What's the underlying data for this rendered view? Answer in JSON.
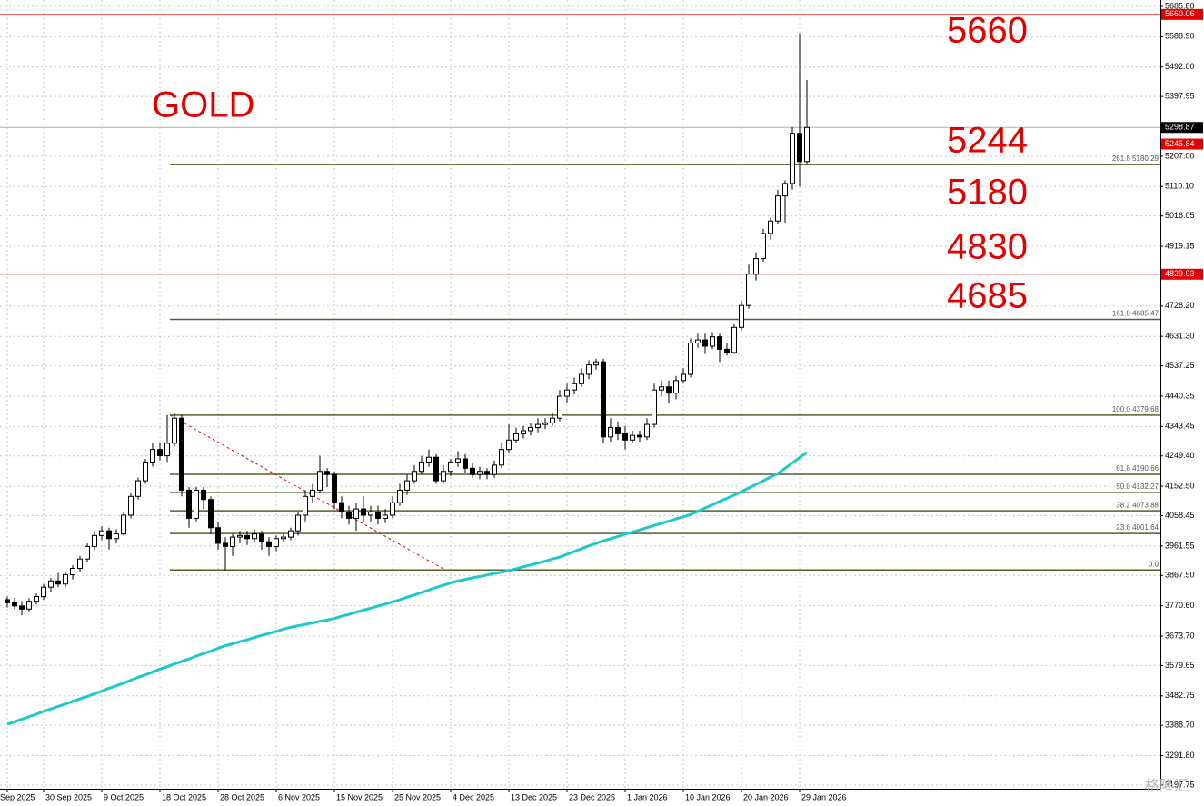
{
  "chart_data": {
    "type": "candlestick",
    "symbol_label": "GOLD",
    "annotations": [
      "5660",
      "5244",
      "5180",
      "4830",
      "4685"
    ],
    "ylim": [
      3186.0,
      5706.1
    ],
    "yticks": [
      {
        "value": 5685.8,
        "label": "5685.80"
      },
      {
        "value": 5588.9,
        "label": "5588.90"
      },
      {
        "value": 5492.0,
        "label": "5492.00"
      },
      5397.95,
      {
        "value": 5207.0,
        "label": "5207.00"
      },
      {
        "value": 5110.1,
        "label": "5110.10"
      },
      5016.05,
      4919.15,
      {
        "value": 4728.2,
        "label": "4728.20"
      },
      {
        "value": 4631.3,
        "label": "4631.30"
      },
      4537.25,
      4440.35,
      4343.45,
      {
        "value": 4249.4,
        "label": "4249.40"
      },
      {
        "value": 4152.5,
        "label": "4152.50"
      },
      4058.45,
      3961.55,
      {
        "value": 3867.5,
        "label": "3867.50"
      },
      {
        "value": 3770.6,
        "label": "3770.60"
      },
      {
        "value": 3673.7,
        "label": "3673.70"
      },
      3579.65,
      3482.75,
      {
        "value": 3388.7,
        "label": "3388.70"
      },
      {
        "value": 3291.8,
        "label": "3291.80"
      },
      3197.75
    ],
    "grid": true,
    "up_color": "#ffffff",
    "down_color": "#000000",
    "levels": [
      5660.06,
      5245.84,
      4829.93
    ],
    "level_color": "#e00000",
    "fib_color": "#4f6228",
    "fib_levels": [
      {
        "value": 5180.29,
        "label": "261.8 5180.29"
      },
      {
        "value": 4685.47,
        "label": "161.8 4685.47"
      },
      {
        "value": 4379.68,
        "label": "100.0 4379.68"
      },
      {
        "value": 4190.66,
        "label": "61.8 4190.66"
      },
      {
        "value": 4132.27,
        "label": "50.0 4132.27"
      },
      {
        "value": 4073.88,
        "label": "38.2 4073.88"
      },
      {
        "value": 4001.64,
        "label": "23.6 4001.64"
      },
      {
        "value": 3884.9,
        "label": "0.0"
      }
    ],
    "categories": [
      "Sep 2025",
      null,
      null,
      null,
      null,
      "30 Sep 2025",
      null,
      null,
      null,
      null,
      null,
      null,
      null,
      "9 Oct 2025",
      null,
      null,
      null,
      null,
      null,
      null,
      null,
      "18 Oct 2025",
      null,
      null,
      null,
      null,
      null,
      null,
      null,
      "28 Oct 2025",
      null,
      null,
      null,
      null,
      null,
      null,
      null,
      "6 Nov 2025",
      null,
      null,
      null,
      null,
      null,
      null,
      null,
      "15 Nov 2025",
      null,
      null,
      null,
      null,
      null,
      null,
      null,
      "25 Nov 2025",
      null,
      null,
      null,
      null,
      null,
      null,
      null,
      "4 Dec 2025",
      null,
      null,
      null,
      null,
      null,
      null,
      null,
      "13 Dec 2025",
      null,
      null,
      null,
      null,
      null,
      null,
      null,
      "23 Dec 2025",
      null,
      null,
      null,
      null,
      null,
      null,
      null,
      "1 Jan 2026",
      null,
      null,
      null,
      null,
      null,
      null,
      null,
      "10 Jan 2026",
      null,
      null,
      null,
      null,
      null,
      null,
      null,
      "20 Jan 2026",
      null,
      null,
      null,
      null,
      null,
      null,
      null,
      "29 Jan 2026",
      null
    ],
    "candles": [
      [
        3790,
        3800,
        3765,
        3780
      ],
      [
        3780,
        3795,
        3760,
        3770
      ],
      [
        3770,
        3785,
        3740,
        3760
      ],
      [
        3760,
        3795,
        3750,
        3785
      ],
      [
        3785,
        3810,
        3775,
        3800
      ],
      [
        3800,
        3840,
        3790,
        3830
      ],
      [
        3830,
        3860,
        3815,
        3850
      ],
      [
        3850,
        3875,
        3830,
        3840
      ],
      [
        3840,
        3880,
        3830,
        3870
      ],
      [
        3870,
        3900,
        3855,
        3890
      ],
      [
        3890,
        3930,
        3880,
        3920
      ],
      [
        3920,
        3970,
        3910,
        3960
      ],
      [
        3960,
        4010,
        3950,
        3995
      ],
      [
        3995,
        4025,
        3980,
        4010
      ],
      [
        4010,
        4020,
        3950,
        3985
      ],
      [
        3985,
        4015,
        3970,
        4000
      ],
      [
        4000,
        4070,
        3995,
        4060
      ],
      [
        4060,
        4130,
        4050,
        4120
      ],
      [
        4120,
        4180,
        4110,
        4170
      ],
      [
        4170,
        4240,
        4160,
        4230
      ],
      [
        4230,
        4290,
        4215,
        4270
      ],
      [
        4270,
        4290,
        4235,
        4250
      ],
      [
        4250,
        4380,
        4230,
        4290
      ],
      [
        4290,
        4385,
        4280,
        4370
      ],
      [
        4370,
        4380,
        4120,
        4140
      ],
      [
        4140,
        4150,
        4020,
        4050
      ],
      [
        4050,
        4150,
        4040,
        4140
      ],
      [
        4140,
        4150,
        4080,
        4110
      ],
      [
        4110,
        4120,
        4000,
        4020
      ],
      [
        4020,
        4040,
        3950,
        3970
      ],
      [
        3970,
        3990,
        3885,
        3960
      ],
      [
        3960,
        4000,
        3930,
        3990
      ],
      [
        3990,
        4010,
        3970,
        3995
      ],
      [
        3995,
        4010,
        3965,
        3985
      ],
      [
        3985,
        4015,
        3975,
        4000
      ],
      [
        4000,
        4010,
        3950,
        3975
      ],
      [
        3975,
        3990,
        3930,
        3960
      ],
      [
        3960,
        3995,
        3945,
        3985
      ],
      [
        3985,
        4000,
        3975,
        3990
      ],
      [
        3990,
        4020,
        3980,
        4010
      ],
      [
        4010,
        4070,
        3995,
        4060
      ],
      [
        4060,
        4140,
        4040,
        4120
      ],
      [
        4120,
        4160,
        4100,
        4140
      ],
      [
        4140,
        4250,
        4130,
        4200
      ],
      [
        4200,
        4210,
        4150,
        4190
      ],
      [
        4190,
        4200,
        4080,
        4100
      ],
      [
        4100,
        4120,
        4050,
        4070
      ],
      [
        4070,
        4090,
        4030,
        4050
      ],
      [
        4050,
        4100,
        4010,
        4080
      ],
      [
        4080,
        4120,
        4040,
        4060
      ],
      [
        4060,
        4090,
        4040,
        4070
      ],
      [
        4070,
        4090,
        4030,
        4050
      ],
      [
        4050,
        4080,
        4035,
        4060
      ],
      [
        4060,
        4120,
        4050,
        4100
      ],
      [
        4100,
        4160,
        4090,
        4140
      ],
      [
        4140,
        4190,
        4125,
        4170
      ],
      [
        4170,
        4220,
        4160,
        4200
      ],
      [
        4200,
        4250,
        4190,
        4230
      ],
      [
        4230,
        4270,
        4215,
        4245
      ],
      [
        4245,
        4255,
        4160,
        4170
      ],
      [
        4170,
        4220,
        4160,
        4200
      ],
      [
        4200,
        4240,
        4185,
        4230
      ],
      [
        4230,
        4265,
        4215,
        4240
      ],
      [
        4240,
        4255,
        4195,
        4210
      ],
      [
        4210,
        4225,
        4180,
        4190
      ],
      [
        4190,
        4215,
        4175,
        4200
      ],
      [
        4200,
        4210,
        4175,
        4190
      ],
      [
        4190,
        4235,
        4180,
        4220
      ],
      [
        4220,
        4290,
        4210,
        4270
      ],
      [
        4270,
        4350,
        4260,
        4300
      ],
      [
        4300,
        4340,
        4290,
        4320
      ],
      [
        4320,
        4345,
        4305,
        4330
      ],
      [
        4330,
        4355,
        4315,
        4340
      ],
      [
        4340,
        4370,
        4325,
        4350
      ],
      [
        4350,
        4370,
        4335,
        4355
      ],
      [
        4355,
        4385,
        4345,
        4370
      ],
      [
        4370,
        4460,
        4360,
        4440
      ],
      [
        4440,
        4480,
        4420,
        4460
      ],
      [
        4460,
        4500,
        4445,
        4480
      ],
      [
        4480,
        4530,
        4470,
        4510
      ],
      [
        4510,
        4555,
        4495,
        4540
      ],
      [
        4540,
        4560,
        4525,
        4550
      ],
      [
        4550,
        4560,
        4290,
        4310
      ],
      [
        4310,
        4370,
        4295,
        4340
      ],
      [
        4340,
        4360,
        4300,
        4320
      ],
      [
        4320,
        4345,
        4270,
        4300
      ],
      [
        4300,
        4330,
        4290,
        4315
      ],
      [
        4315,
        4330,
        4295,
        4310
      ],
      [
        4310,
        4370,
        4300,
        4350
      ],
      [
        4350,
        4480,
        4340,
        4460
      ],
      [
        4460,
        4490,
        4440,
        4470
      ],
      [
        4470,
        4490,
        4420,
        4450
      ],
      [
        4450,
        4505,
        4430,
        4490
      ],
      [
        4490,
        4530,
        4480,
        4510
      ],
      [
        4510,
        4625,
        4500,
        4610
      ],
      [
        4610,
        4640,
        4595,
        4620
      ],
      [
        4620,
        4640,
        4575,
        4600
      ],
      [
        4600,
        4645,
        4590,
        4630
      ],
      [
        4630,
        4640,
        4550,
        4590
      ],
      [
        4590,
        4610,
        4570,
        4580
      ],
      [
        4580,
        4670,
        4575,
        4660
      ],
      [
        4660,
        4745,
        4650,
        4730
      ],
      [
        4730,
        4860,
        4720,
        4830
      ],
      [
        4830,
        4900,
        4810,
        4880
      ],
      [
        4880,
        4975,
        4870,
        4960
      ],
      [
        4960,
        5010,
        4940,
        5000
      ],
      [
        5000,
        5100,
        4990,
        5080
      ],
      [
        5080,
        5130,
        4995,
        5120
      ],
      [
        5120,
        5300,
        5100,
        5280
      ],
      [
        5280,
        5599,
        5110,
        5190
      ],
      [
        5190,
        5451,
        5180,
        5298.87
      ]
    ],
    "ma": {
      "color": "#1fc8c8",
      "values": [
        3392,
        3400,
        3408,
        3416,
        3424,
        3433,
        3441,
        3449,
        3457,
        3465,
        3473,
        3481,
        3489,
        3498,
        3507,
        3515,
        3524,
        3533,
        3542,
        3550,
        3559,
        3568,
        3576,
        3585,
        3593,
        3601,
        3610,
        3618,
        3626,
        3635,
        3643,
        3649,
        3656,
        3662,
        3669,
        3676,
        3682,
        3689,
        3696,
        3702,
        3707,
        3711,
        3716,
        3721,
        3725,
        3730,
        3737,
        3743,
        3750,
        3757,
        3763,
        3770,
        3776,
        3783,
        3790,
        3798,
        3805,
        3813,
        3821,
        3829,
        3836,
        3844,
        3850,
        3855,
        3860,
        3864,
        3869,
        3874,
        3878,
        3883,
        3889,
        3895,
        3901,
        3907,
        3913,
        3920,
        3926,
        3935,
        3944,
        3953,
        3962,
        3970,
        3978,
        3985,
        3992,
        3999,
        4006,
        4013,
        4020,
        4027,
        4034,
        4041,
        4048,
        4055,
        4062,
        4072,
        4083,
        4093,
        4104,
        4114,
        4124,
        4135,
        4147,
        4158,
        4170,
        4182,
        4193,
        4210,
        4227,
        4244,
        4261
      ]
    },
    "watermark": "格隆汇"
  }
}
